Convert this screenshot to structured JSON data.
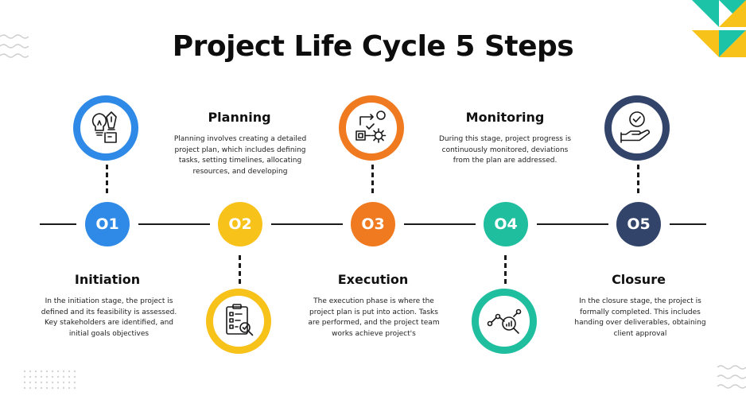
{
  "title": "Project Life Cycle 5 Steps",
  "colors": {
    "step1": "#2e8ae6",
    "step2": "#f7c21a",
    "step3": "#f07a1f",
    "step4": "#1fbe9f",
    "step5": "#33446b",
    "accent_teal": "#1cc3a6",
    "accent_yellow": "#f7c21a"
  },
  "steps": [
    {
      "number": "O1",
      "title": "Initiation",
      "description": "In the initiation stage, the project is defined and its feasibility is assessed. Key stakeholders are identified, and initial goals objectives",
      "icon": "lightbulb-pen-icon"
    },
    {
      "number": "O2",
      "title": "Planning",
      "description": "Planning involves creating a detailed project plan, which includes defining tasks, setting timelines, allocating resources, and developing",
      "icon": "clipboard-checklist-icon"
    },
    {
      "number": "O3",
      "title": "Execution",
      "description": "The execution phase is where the project plan is put into action. Tasks are performed, and the project team works achieve project's",
      "icon": "workflow-gear-icon"
    },
    {
      "number": "O4",
      "title": "Monitoring",
      "description": "During this stage, project progress is continuously monitored, deviations from the plan are addressed.",
      "icon": "analytics-magnifier-icon"
    },
    {
      "number": "O5",
      "title": "Closure",
      "description": "In the closure stage, the project is formally completed. This includes handing over deliverables, obtaining client approval",
      "icon": "hand-checkmark-icon"
    }
  ]
}
